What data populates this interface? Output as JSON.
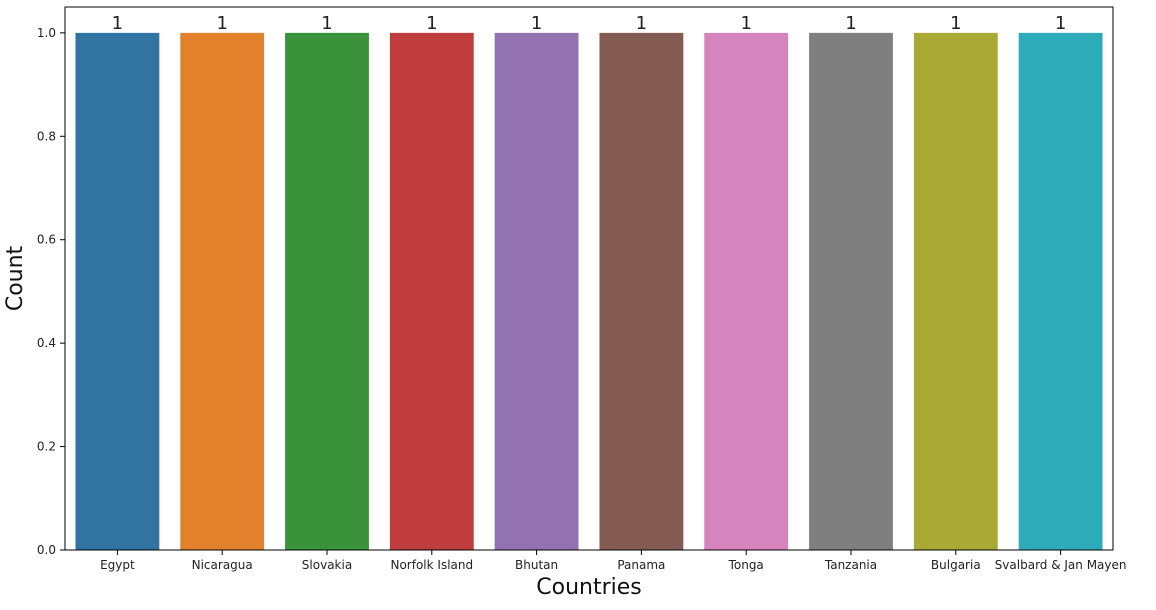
{
  "chart_data": {
    "type": "bar",
    "categories": [
      "Egypt",
      "Nicaragua",
      "Slovakia",
      "Norfolk Island",
      "Bhutan",
      "Panama",
      "Tonga",
      "Tanzania",
      "Bulgaria",
      "Svalbard & Jan Mayen"
    ],
    "values": [
      1,
      1,
      1,
      1,
      1,
      1,
      1,
      1,
      1,
      1
    ],
    "data_labels": [
      "1",
      "1",
      "1",
      "1",
      "1",
      "1",
      "1",
      "1",
      "1",
      "1"
    ],
    "colors": [
      "#3274a1",
      "#e1812c",
      "#3a923a",
      "#c03d3e",
      "#9372b2",
      "#845b53",
      "#d684bd",
      "#7f7f7f",
      "#a9aa35",
      "#2eabb8"
    ],
    "xlabel": "Countries",
    "ylabel": "Count",
    "ylim": [
      0,
      1.05
    ],
    "yticks": [
      0.0,
      0.2,
      0.4,
      0.6,
      0.8,
      1.0
    ],
    "ytick_labels": [
      "0.0",
      "0.2",
      "0.4",
      "0.6",
      "0.8",
      "1.0"
    ],
    "grid": false,
    "legend": "none"
  }
}
